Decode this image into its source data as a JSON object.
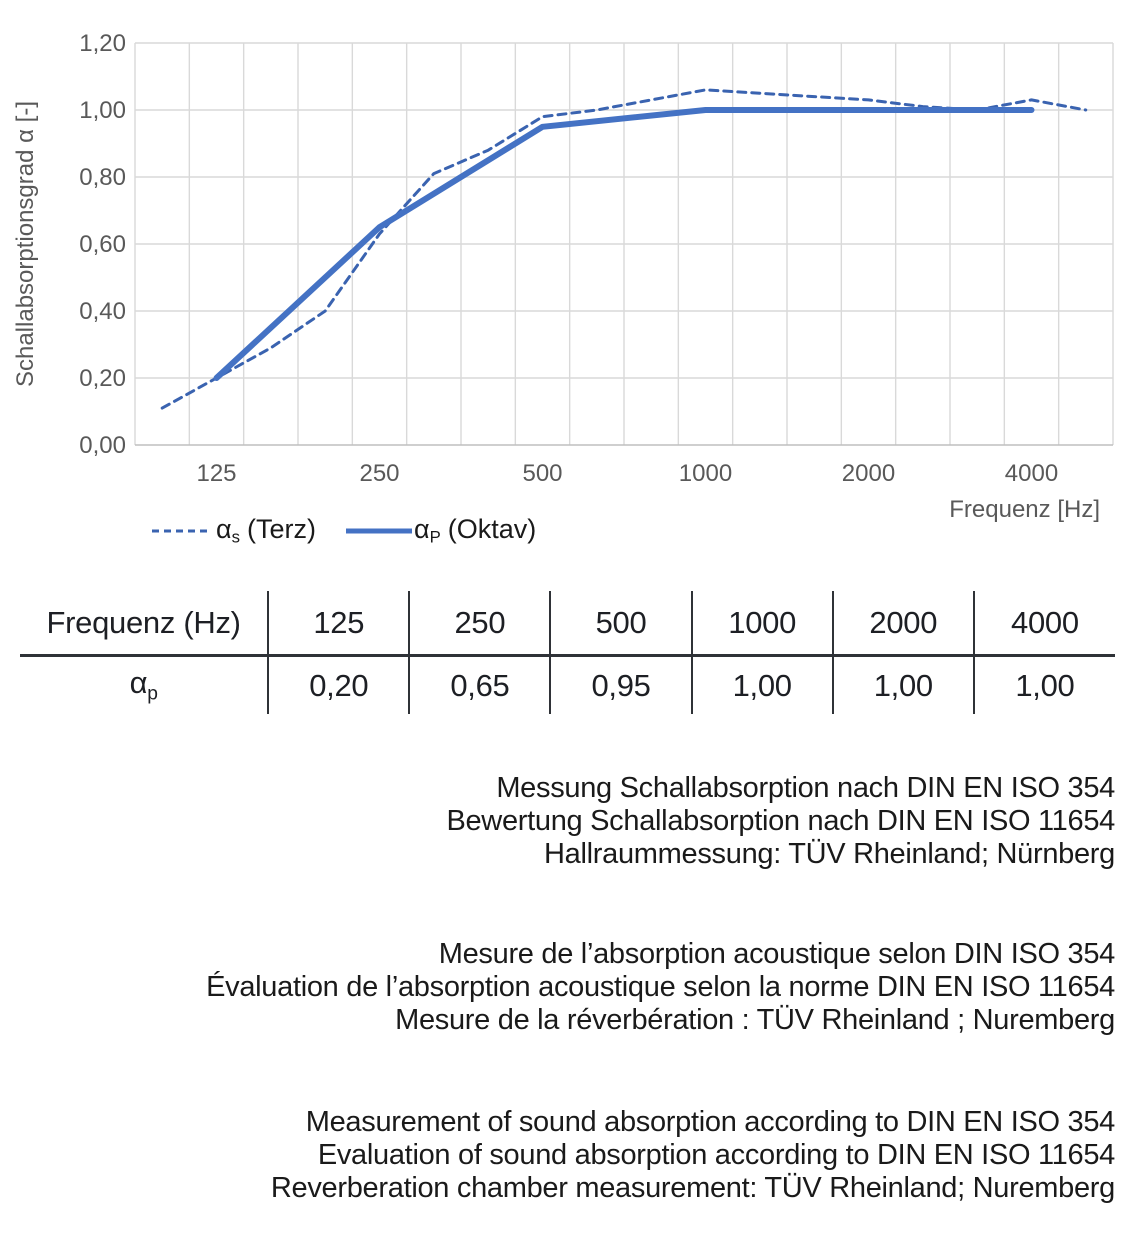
{
  "colors": {
    "line_solid": "#4472C4",
    "line_dashed": "#3A63B0",
    "gridline": "#D9D9D9",
    "axis_line": "#BFBFBF",
    "tick_label": "#595959",
    "text": "#1A1A1A",
    "table_line": "#2F3237"
  },
  "chart": {
    "y_axis_title": "Schallabsorptionsgrad α [-]",
    "x_axis_title": "Frequenz [Hz]",
    "y_tick_labels": [
      "0,00",
      "0,20",
      "0,40",
      "0,60",
      "0,80",
      "1,00",
      "1,20"
    ],
    "x_tick_labels": [
      "125",
      "250",
      "500",
      "1000",
      "2000",
      "4000"
    ],
    "legend": [
      {
        "symbol": "α",
        "subscript": "s",
        "label": "(Terz)"
      },
      {
        "symbol": "α",
        "subscript": "P",
        "label": "(Oktav)"
      }
    ]
  },
  "chart_data": {
    "type": "line",
    "title": "",
    "xlabel": "Frequenz [Hz]",
    "ylabel": "Schallabsorptionsgrad α [-]",
    "x_scale": "third-octave bands, logarithmic spacing",
    "ylim": [
      0,
      1.2
    ],
    "y_tick_step": 0.2,
    "grid": true,
    "legend_position": "bottom-left",
    "categories": [
      100,
      125,
      160,
      200,
      250,
      315,
      400,
      500,
      630,
      800,
      1000,
      1250,
      1600,
      2000,
      2500,
      3150,
      4000,
      5000
    ],
    "x_axis_labeled_ticks": [
      125,
      250,
      500,
      1000,
      2000,
      4000
    ],
    "series": [
      {
        "name": "αs (Terz)",
        "style": "dashed",
        "x": [
          100,
          125,
          160,
          200,
          250,
          315,
          400,
          500,
          630,
          800,
          1000,
          1250,
          1600,
          2000,
          2500,
          3150,
          4000,
          5000
        ],
        "values": [
          0.11,
          0.2,
          0.29,
          0.4,
          0.63,
          0.81,
          0.88,
          0.98,
          1.0,
          1.03,
          1.06,
          1.05,
          1.04,
          1.03,
          1.01,
          1.0,
          1.03,
          1.0
        ]
      },
      {
        "name": "αP (Oktav)",
        "style": "solid",
        "x": [
          125,
          250,
          500,
          1000,
          2000,
          4000
        ],
        "values": [
          0.2,
          0.65,
          0.95,
          1.0,
          1.0,
          1.0
        ]
      }
    ]
  },
  "table": {
    "header_label": "Frequenz (Hz)",
    "frequencies": [
      "125",
      "250",
      "500",
      "1000",
      "2000",
      "4000"
    ],
    "row_symbol": "α",
    "row_subscript": "p",
    "values": [
      "0,20",
      "0,65",
      "0,95",
      "1,00",
      "1,00",
      "1,00"
    ]
  },
  "notes": {
    "german": [
      "Messung Schallabsorption nach DIN EN ISO 354",
      "Bewertung Schallabsorption nach DIN EN ISO 11654",
      "Hallraummessung: TÜV Rheinland; Nürnberg"
    ],
    "french": [
      "Mesure de l’absorption acoustique selon DIN ISO 354",
      "Évaluation de l’absorption acoustique selon la norme DIN EN ISO 11654",
      "Mesure de la réverbération : TÜV Rheinland ; Nuremberg"
    ],
    "english": [
      "Measurement of sound absorption according to DIN EN ISO 354",
      "Evaluation of sound absorption according to DIN EN ISO 11654",
      "Reverberation chamber measurement: TÜV Rheinland; Nuremberg"
    ]
  }
}
